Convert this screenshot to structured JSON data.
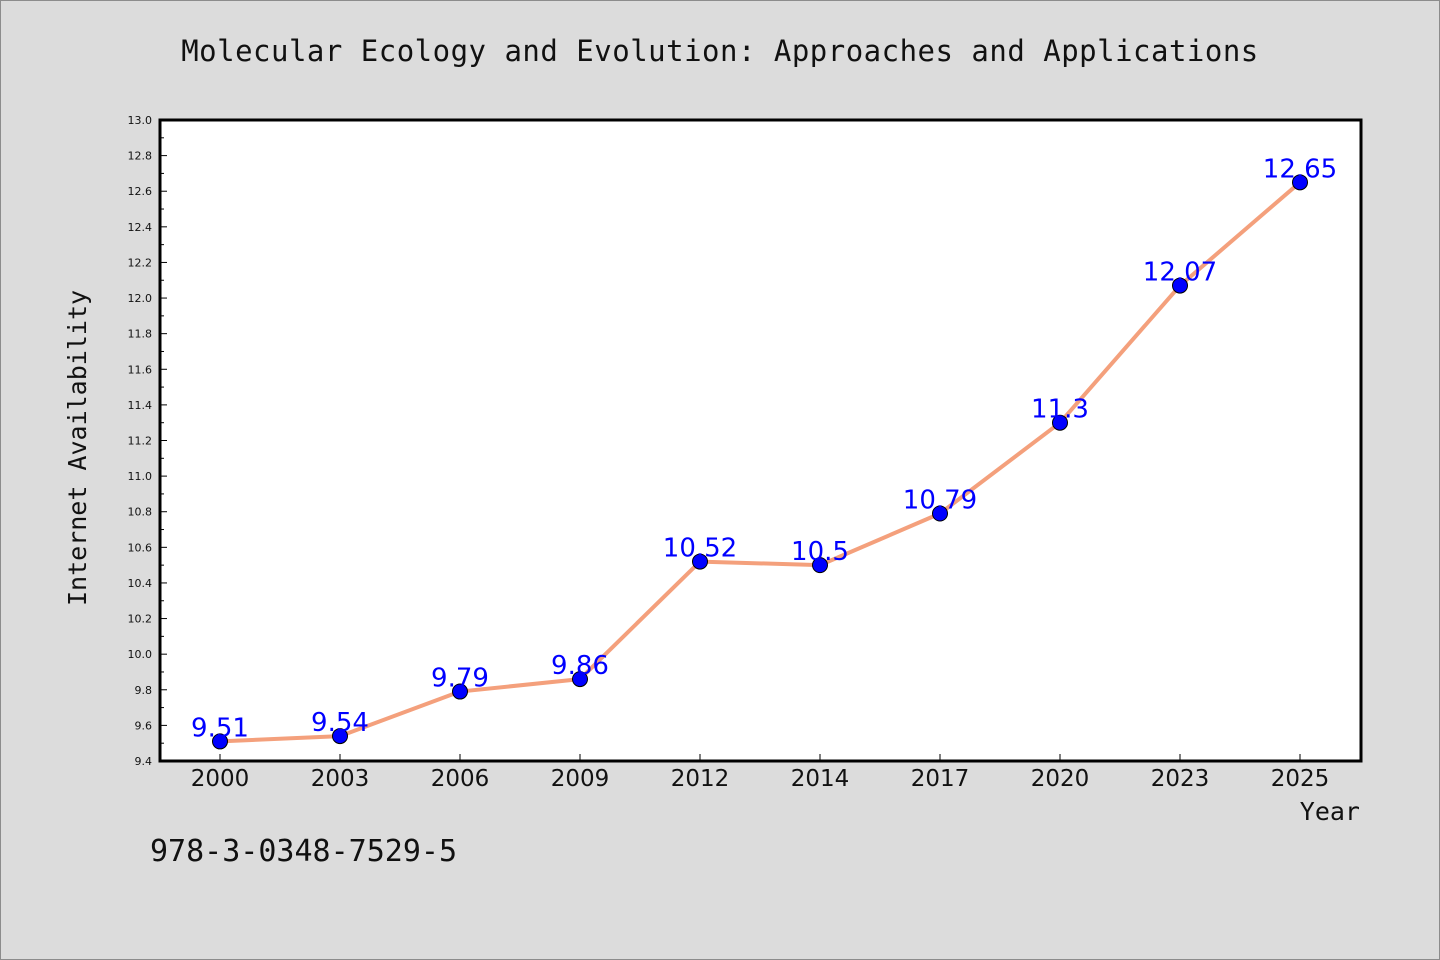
{
  "chart_data": {
    "type": "line",
    "title": "Molecular Ecology and Evolution: Approaches and Applications",
    "xlabel": "Year",
    "ylabel": "Internet Availability",
    "categories": [
      "2000",
      "2003",
      "2006",
      "2009",
      "2012",
      "2014",
      "2017",
      "2020",
      "2023",
      "2025"
    ],
    "series": [
      {
        "values": [
          9.51,
          9.54,
          9.79,
          9.86,
          10.52,
          10.5,
          10.79,
          11.3,
          12.07,
          12.65
        ],
        "labels": [
          "9.51",
          "9.54",
          "9.79",
          "9.86",
          "10.52",
          "10.5",
          "10.79",
          "11.3",
          "12.07",
          "12.65"
        ],
        "line_color": "#f4a07c",
        "marker_color": "#0000ff"
      }
    ],
    "ylim": [
      9.4,
      13.0
    ],
    "yticks": [
      "9.4",
      "9.6",
      "9.8",
      "10.0",
      "10.2",
      "10.4",
      "10.6",
      "10.8",
      "11.0",
      "11.2",
      "11.4",
      "11.6",
      "11.8",
      "12.0",
      "12.2",
      "12.4",
      "12.6",
      "12.8",
      "13.0"
    ],
    "grid": false
  },
  "footer": {
    "isbn": "978-3-0348-7529-5"
  }
}
